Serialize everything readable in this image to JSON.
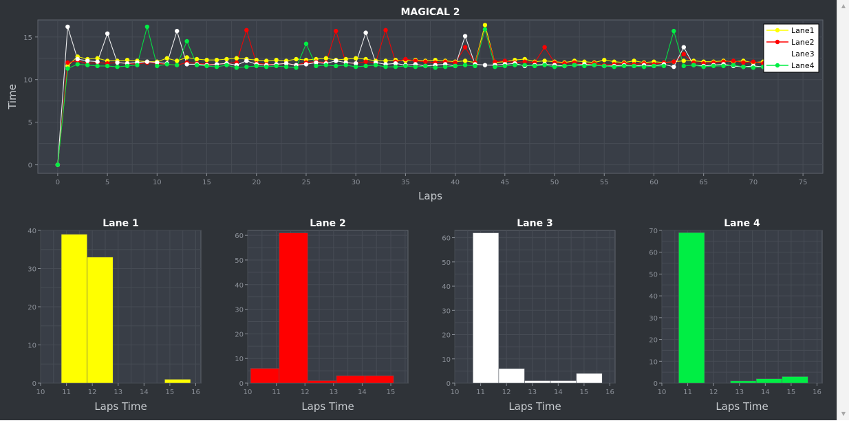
{
  "chart_data": [
    {
      "type": "line",
      "title": "MAGICAL 2",
      "xlabel": "Laps",
      "ylabel": "Time",
      "xlim": [
        -2,
        77
      ],
      "ylim": [
        -1,
        17
      ],
      "xticks": [
        0,
        5,
        10,
        15,
        20,
        25,
        30,
        35,
        40,
        45,
        50,
        55,
        60,
        65,
        70,
        75
      ],
      "yticks": [
        0,
        5,
        10,
        15
      ],
      "grid": true,
      "legend_position": "top-right",
      "series": [
        {
          "name": "Lane1",
          "color": "#ffff00",
          "x": [
            0,
            1,
            2,
            3,
            4,
            5,
            6,
            7,
            8,
            9,
            10,
            11,
            12,
            13,
            14,
            15,
            16,
            17,
            18,
            19,
            20,
            21,
            22,
            23,
            24,
            25,
            26,
            27,
            28,
            29,
            30,
            31,
            32,
            33,
            34,
            35,
            36,
            37,
            38,
            39,
            40,
            41,
            42,
            43,
            44,
            45,
            46,
            47,
            48,
            49,
            50,
            51,
            52,
            53,
            54,
            55,
            56,
            57,
            58,
            59,
            60,
            61,
            62,
            63,
            64,
            65,
            66,
            67,
            68,
            69,
            70,
            71
          ],
          "y": [
            0,
            11.6,
            12.7,
            12.4,
            12.5,
            12.2,
            12.2,
            12.3,
            12.2,
            12.1,
            12.1,
            12.5,
            12.2,
            12.6,
            12.4,
            12.3,
            12.3,
            12.4,
            12.5,
            12.4,
            12.3,
            12.2,
            12.3,
            12.2,
            12.4,
            12.3,
            12.4,
            12.5,
            12.3,
            12.4,
            12.5,
            12.4,
            12.2,
            12.2,
            12.3,
            12.2,
            12.3,
            12.2,
            12.3,
            12.2,
            12.1,
            12.2,
            12.0,
            16.4,
            12.0,
            12.1,
            12.3,
            12.4,
            12.1,
            12.2,
            12.1,
            12.0,
            12.2,
            12.1,
            12.0,
            12.3,
            12.1,
            12.0,
            12.2,
            12.0,
            12.1,
            12.0,
            12.1,
            12.2,
            12.2,
            12.1,
            12.1,
            12.2,
            12.1,
            12.2,
            12.0,
            12.1
          ]
        },
        {
          "name": "Lane2",
          "color": "#ff0000",
          "x": [
            0,
            1,
            2,
            3,
            4,
            5,
            6,
            7,
            8,
            9,
            10,
            11,
            12,
            13,
            14,
            15,
            16,
            17,
            18,
            19,
            20,
            21,
            22,
            23,
            24,
            25,
            26,
            27,
            28,
            29,
            30,
            31,
            32,
            33,
            34,
            35,
            36,
            37,
            38,
            39,
            40,
            41,
            42,
            43,
            44,
            45,
            46,
            47,
            48,
            49,
            50,
            51,
            52,
            53,
            54,
            55,
            56,
            57,
            58,
            59,
            60,
            61,
            62,
            63,
            64,
            65,
            66,
            67,
            68,
            69,
            70,
            71
          ],
          "y": [
            0,
            12.0,
            12.2,
            11.9,
            12.0,
            11.9,
            12.0,
            11.9,
            11.8,
            12.0,
            11.9,
            11.8,
            11.7,
            12.0,
            11.9,
            11.8,
            11.8,
            11.9,
            12.0,
            15.8,
            11.9,
            11.8,
            11.8,
            11.9,
            11.7,
            12.0,
            12.1,
            12.0,
            15.7,
            12.0,
            11.9,
            12.1,
            12.0,
            15.8,
            12.1,
            12.4,
            12.2,
            12.1,
            12.0,
            12.1,
            12.0,
            13.8,
            12.0,
            15.9,
            12.1,
            12.2,
            12.0,
            12.1,
            12.0,
            13.8,
            12.0,
            11.9,
            12.0,
            11.8,
            11.9,
            11.7,
            11.8,
            11.9,
            11.8,
            11.9,
            11.8,
            12.0,
            12.1,
            13.0,
            12.0,
            11.9,
            12.0,
            12.1,
            12.2,
            12.0,
            12.1,
            11.9
          ]
        },
        {
          "name": "Lane3",
          "color": "#ffffff",
          "x": [
            0,
            1,
            2,
            3,
            4,
            5,
            6,
            7,
            8,
            9,
            10,
            11,
            12,
            13,
            14,
            15,
            16,
            17,
            18,
            19,
            20,
            21,
            22,
            23,
            24,
            25,
            26,
            27,
            28,
            29,
            30,
            31,
            32,
            33,
            34,
            35,
            36,
            37,
            38,
            39,
            40,
            41,
            42,
            43,
            44,
            45,
            46,
            47,
            48,
            49,
            50,
            51,
            52,
            53,
            54,
            55,
            56,
            57,
            58,
            59,
            60,
            61,
            62,
            63,
            64,
            65,
            66,
            67,
            68,
            69,
            70,
            71
          ],
          "y": [
            0,
            16.2,
            12.4,
            12.2,
            12.1,
            15.4,
            12.0,
            11.9,
            12.0,
            12.1,
            12.0,
            11.9,
            15.7,
            11.8,
            11.8,
            11.7,
            11.8,
            11.9,
            11.7,
            12.2,
            11.8,
            11.7,
            11.8,
            11.9,
            11.7,
            11.8,
            12.0,
            11.9,
            12.2,
            12.0,
            11.9,
            15.5,
            12.0,
            11.8,
            11.9,
            11.7,
            11.8,
            11.6,
            11.7,
            11.8,
            11.6,
            15.1,
            11.8,
            11.7,
            11.7,
            11.8,
            11.9,
            11.6,
            11.7,
            11.8,
            11.7,
            11.6,
            11.7,
            11.8,
            11.7,
            11.6,
            11.6,
            11.7,
            11.6,
            11.7,
            11.6,
            11.8,
            11.5,
            13.8,
            11.7,
            11.6,
            11.7,
            11.8,
            11.6,
            11.5,
            11.6,
            11.5
          ]
        },
        {
          "name": "Lane4",
          "color": "#00ee44",
          "x": [
            0,
            1,
            2,
            3,
            4,
            5,
            6,
            7,
            8,
            9,
            10,
            11,
            12,
            13,
            14,
            15,
            16,
            17,
            18,
            19,
            20,
            21,
            22,
            23,
            24,
            25,
            26,
            27,
            28,
            29,
            30,
            31,
            32,
            33,
            34,
            35,
            36,
            37,
            38,
            39,
            40,
            41,
            42,
            43,
            44,
            45,
            46,
            47,
            48,
            49,
            50,
            51,
            52,
            53,
            54,
            55,
            56,
            57,
            58,
            59,
            60,
            61,
            62,
            63,
            64,
            65,
            66,
            67,
            68,
            69,
            70,
            71
          ],
          "y": [
            0,
            11.3,
            11.8,
            11.7,
            11.6,
            11.6,
            11.5,
            11.6,
            11.7,
            16.2,
            11.6,
            11.8,
            11.7,
            14.5,
            11.7,
            11.6,
            11.5,
            11.7,
            11.4,
            11.5,
            11.6,
            11.5,
            11.6,
            11.5,
            11.4,
            14.2,
            11.6,
            11.7,
            11.6,
            11.7,
            11.5,
            11.6,
            11.7,
            11.5,
            11.5,
            11.6,
            11.5,
            11.6,
            11.4,
            11.5,
            11.6,
            11.7,
            11.6,
            15.9,
            11.5,
            11.6,
            11.7,
            11.7,
            11.6,
            11.7,
            11.5,
            11.6,
            11.7,
            11.6,
            11.7,
            11.6,
            11.5,
            11.6,
            11.6,
            11.5,
            11.6,
            11.6,
            15.7,
            11.6,
            11.7,
            11.5,
            11.6,
            11.6,
            11.7,
            11.5,
            11.4,
            11.5
          ]
        }
      ]
    },
    {
      "type": "bar",
      "title": "Lane 1",
      "xlabel": "Laps Time",
      "ylabel": "",
      "color": "#ffff00",
      "xlim": [
        10,
        16.2
      ],
      "ylim": [
        0,
        40
      ],
      "xticks": [
        10,
        11,
        12,
        13,
        14,
        15,
        16
      ],
      "yticks": [
        0,
        10,
        20,
        30,
        40
      ],
      "bars": [
        {
          "x0": 10.8,
          "x1": 11.8,
          "value": 39
        },
        {
          "x0": 11.8,
          "x1": 12.8,
          "value": 33
        },
        {
          "x0": 14.8,
          "x1": 15.8,
          "value": 1
        }
      ]
    },
    {
      "type": "bar",
      "title": "Lane 2",
      "xlabel": "Laps Time",
      "ylabel": "",
      "color": "#ff0000",
      "xlim": [
        10,
        15.6
      ],
      "ylim": [
        0,
        62
      ],
      "xticks": [
        10,
        11,
        12,
        13,
        14,
        15
      ],
      "yticks": [
        0,
        10,
        20,
        30,
        40,
        50,
        60
      ],
      "bars": [
        {
          "x0": 10.1,
          "x1": 11.1,
          "value": 6
        },
        {
          "x0": 11.1,
          "x1": 12.1,
          "value": 61
        },
        {
          "x0": 12.1,
          "x1": 13.1,
          "value": 1
        },
        {
          "x0": 13.1,
          "x1": 14.1,
          "value": 3
        },
        {
          "x0": 14.1,
          "x1": 15.1,
          "value": 3
        }
      ]
    },
    {
      "type": "bar",
      "title": "Lane 3",
      "xlabel": "Laps Time",
      "ylabel": "",
      "color": "#ffffff",
      "xlim": [
        10,
        16.2
      ],
      "ylim": [
        0,
        63
      ],
      "xticks": [
        10,
        11,
        12,
        13,
        14,
        15,
        16
      ],
      "yticks": [
        0,
        10,
        20,
        30,
        40,
        50,
        60
      ],
      "bars": [
        {
          "x0": 10.7,
          "x1": 11.7,
          "value": 62
        },
        {
          "x0": 11.7,
          "x1": 12.7,
          "value": 6
        },
        {
          "x0": 12.7,
          "x1": 13.7,
          "value": 1
        },
        {
          "x0": 13.7,
          "x1": 14.7,
          "value": 1
        },
        {
          "x0": 14.7,
          "x1": 15.7,
          "value": 4
        }
      ]
    },
    {
      "type": "bar",
      "title": "Lane 4",
      "xlabel": "Laps Time",
      "ylabel": "",
      "color": "#00ee44",
      "xlim": [
        10,
        16.2
      ],
      "ylim": [
        0,
        70
      ],
      "xticks": [
        10,
        11,
        12,
        13,
        14,
        15,
        16
      ],
      "yticks": [
        0,
        10,
        20,
        30,
        40,
        50,
        60,
        70
      ],
      "bars": [
        {
          "x0": 10.65,
          "x1": 11.65,
          "value": 69
        },
        {
          "x0": 12.65,
          "x1": 13.65,
          "value": 1
        },
        {
          "x0": 13.65,
          "x1": 14.65,
          "value": 2
        },
        {
          "x0": 14.65,
          "x1": 15.65,
          "value": 3
        }
      ]
    }
  ],
  "scrollbar": {
    "up_icon": "scroll-up-arrow-icon",
    "down_icon": "scroll-down-arrow-icon"
  }
}
